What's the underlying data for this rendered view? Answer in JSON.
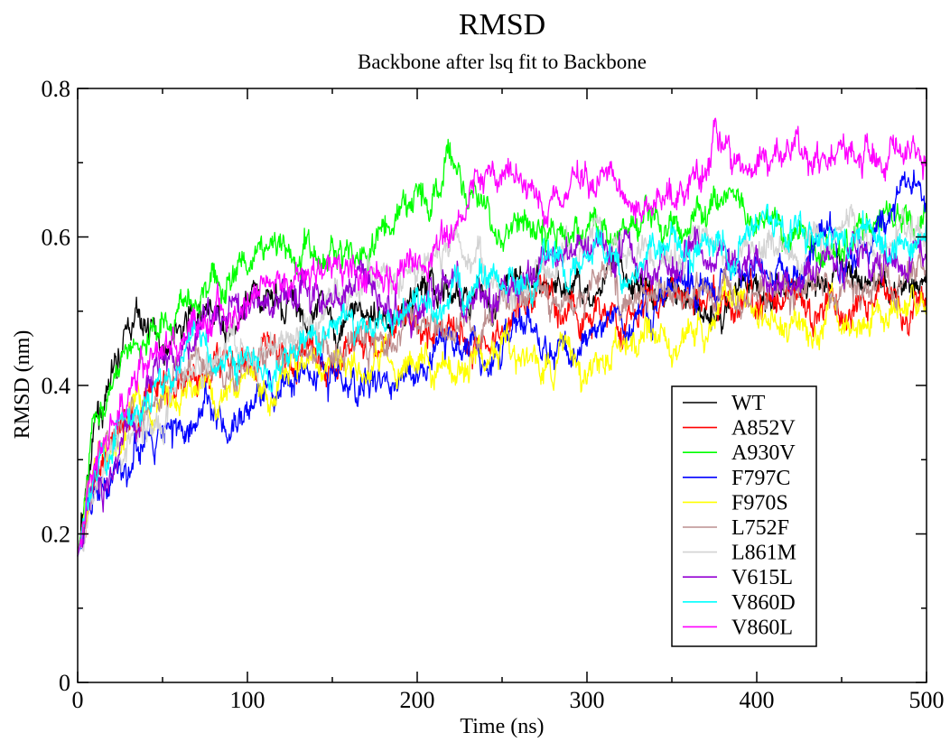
{
  "chart_data": {
    "type": "line",
    "title": "RMSD",
    "subtitle": "Backbone after lsq fit to Backbone",
    "xlabel": "Time (ns)",
    "ylabel": "RMSD (nm)",
    "xlim": [
      0,
      500
    ],
    "ylim": [
      0,
      0.8
    ],
    "x_ticks": [
      "0",
      "100",
      "200",
      "300",
      "400",
      "500"
    ],
    "y_ticks": [
      "0",
      "0.2",
      "0.4",
      "0.6",
      "0.8"
    ],
    "grid": false,
    "legend_position": "bottom-right",
    "series": [
      {
        "name": "WT",
        "color": "#000000",
        "x": [
          0,
          10,
          25,
          35,
          50,
          75,
          100,
          125,
          150,
          175,
          200,
          225,
          250,
          275,
          300,
          325,
          350,
          375,
          400,
          425,
          450,
          475,
          500
        ],
        "values": [
          0.17,
          0.33,
          0.44,
          0.48,
          0.47,
          0.49,
          0.49,
          0.51,
          0.5,
          0.5,
          0.51,
          0.51,
          0.53,
          0.53,
          0.53,
          0.53,
          0.53,
          0.52,
          0.53,
          0.54,
          0.54,
          0.54,
          0.56
        ]
      },
      {
        "name": "A852V",
        "color": "#ff0000",
        "x": [
          0,
          10,
          25,
          50,
          75,
          100,
          125,
          150,
          175,
          200,
          225,
          250,
          275,
          300,
          325,
          350,
          375,
          400,
          425,
          450,
          475,
          500
        ],
        "values": [
          0.17,
          0.28,
          0.33,
          0.38,
          0.42,
          0.44,
          0.44,
          0.45,
          0.46,
          0.47,
          0.48,
          0.49,
          0.5,
          0.5,
          0.51,
          0.51,
          0.5,
          0.51,
          0.5,
          0.5,
          0.51,
          0.52
        ]
      },
      {
        "name": "A930V",
        "color": "#00ff00",
        "x": [
          0,
          10,
          25,
          50,
          75,
          100,
          125,
          150,
          175,
          185,
          195,
          210,
          220,
          235,
          250,
          275,
          300,
          325,
          350,
          375,
          400,
          425,
          450,
          475,
          500
        ],
        "values": [
          0.17,
          0.33,
          0.43,
          0.5,
          0.54,
          0.56,
          0.58,
          0.57,
          0.58,
          0.62,
          0.68,
          0.69,
          0.72,
          0.67,
          0.6,
          0.6,
          0.61,
          0.62,
          0.62,
          0.64,
          0.62,
          0.61,
          0.6,
          0.62,
          0.63
        ]
      },
      {
        "name": "F797C",
        "color": "#0000ff",
        "x": [
          0,
          10,
          25,
          50,
          75,
          100,
          125,
          150,
          175,
          200,
          225,
          250,
          275,
          300,
          325,
          350,
          375,
          400,
          425,
          450,
          475,
          485,
          500
        ],
        "values": [
          0.17,
          0.28,
          0.31,
          0.35,
          0.37,
          0.38,
          0.4,
          0.41,
          0.42,
          0.42,
          0.44,
          0.46,
          0.45,
          0.45,
          0.49,
          0.54,
          0.55,
          0.57,
          0.57,
          0.58,
          0.62,
          0.67,
          0.66
        ]
      },
      {
        "name": "F970S",
        "color": "#ffff00",
        "x": [
          0,
          10,
          25,
          50,
          75,
          100,
          125,
          150,
          175,
          200,
          225,
          250,
          275,
          300,
          325,
          350,
          375,
          400,
          425,
          450,
          475,
          500
        ],
        "values": [
          0.17,
          0.29,
          0.34,
          0.38,
          0.39,
          0.41,
          0.41,
          0.42,
          0.43,
          0.43,
          0.43,
          0.43,
          0.43,
          0.44,
          0.46,
          0.47,
          0.48,
          0.49,
          0.49,
          0.49,
          0.5,
          0.5
        ]
      },
      {
        "name": "L752F",
        "color": "#bc8f8f",
        "x": [
          0,
          10,
          25,
          50,
          75,
          100,
          125,
          150,
          175,
          200,
          225,
          250,
          275,
          300,
          325,
          350,
          375,
          400,
          425,
          450,
          475,
          500
        ],
        "values": [
          0.17,
          0.29,
          0.35,
          0.4,
          0.42,
          0.44,
          0.45,
          0.45,
          0.46,
          0.47,
          0.49,
          0.5,
          0.51,
          0.52,
          0.52,
          0.52,
          0.53,
          0.53,
          0.54,
          0.54,
          0.55,
          0.55
        ]
      },
      {
        "name": "L861M",
        "color": "#d3d3d3",
        "x": [
          0,
          10,
          25,
          50,
          75,
          100,
          125,
          150,
          175,
          200,
          225,
          250,
          275,
          300,
          325,
          350,
          375,
          400,
          425,
          450,
          475,
          500
        ],
        "values": [
          0.17,
          0.28,
          0.33,
          0.38,
          0.42,
          0.45,
          0.48,
          0.52,
          0.54,
          0.55,
          0.56,
          0.56,
          0.57,
          0.58,
          0.58,
          0.59,
          0.6,
          0.6,
          0.6,
          0.6,
          0.6,
          0.61
        ]
      },
      {
        "name": "V615L",
        "color": "#9400d3",
        "x": [
          0,
          10,
          25,
          50,
          75,
          100,
          125,
          150,
          175,
          200,
          225,
          250,
          275,
          300,
          325,
          350,
          375,
          400,
          425,
          450,
          475,
          500
        ],
        "values": [
          0.17,
          0.25,
          0.29,
          0.44,
          0.49,
          0.51,
          0.52,
          0.52,
          0.53,
          0.52,
          0.53,
          0.54,
          0.56,
          0.56,
          0.57,
          0.58,
          0.56,
          0.55,
          0.56,
          0.55,
          0.56,
          0.57
        ]
      },
      {
        "name": "V860D",
        "color": "#00ffff",
        "x": [
          0,
          10,
          25,
          50,
          75,
          100,
          125,
          150,
          175,
          200,
          225,
          250,
          275,
          300,
          325,
          350,
          375,
          400,
          425,
          450,
          475,
          500
        ],
        "values": [
          0.17,
          0.27,
          0.34,
          0.4,
          0.42,
          0.43,
          0.44,
          0.46,
          0.48,
          0.5,
          0.52,
          0.54,
          0.56,
          0.57,
          0.57,
          0.58,
          0.58,
          0.6,
          0.6,
          0.59,
          0.59,
          0.6
        ]
      },
      {
        "name": "V860L",
        "color": "#ff00ff",
        "x": [
          0,
          10,
          25,
          50,
          75,
          100,
          125,
          150,
          175,
          200,
          215,
          225,
          235,
          250,
          275,
          300,
          325,
          350,
          375,
          400,
          425,
          450,
          475,
          500
        ],
        "values": [
          0.17,
          0.3,
          0.38,
          0.45,
          0.48,
          0.5,
          0.53,
          0.55,
          0.55,
          0.56,
          0.6,
          0.64,
          0.68,
          0.67,
          0.67,
          0.66,
          0.65,
          0.68,
          0.7,
          0.7,
          0.72,
          0.71,
          0.71,
          0.71
        ]
      }
    ]
  }
}
